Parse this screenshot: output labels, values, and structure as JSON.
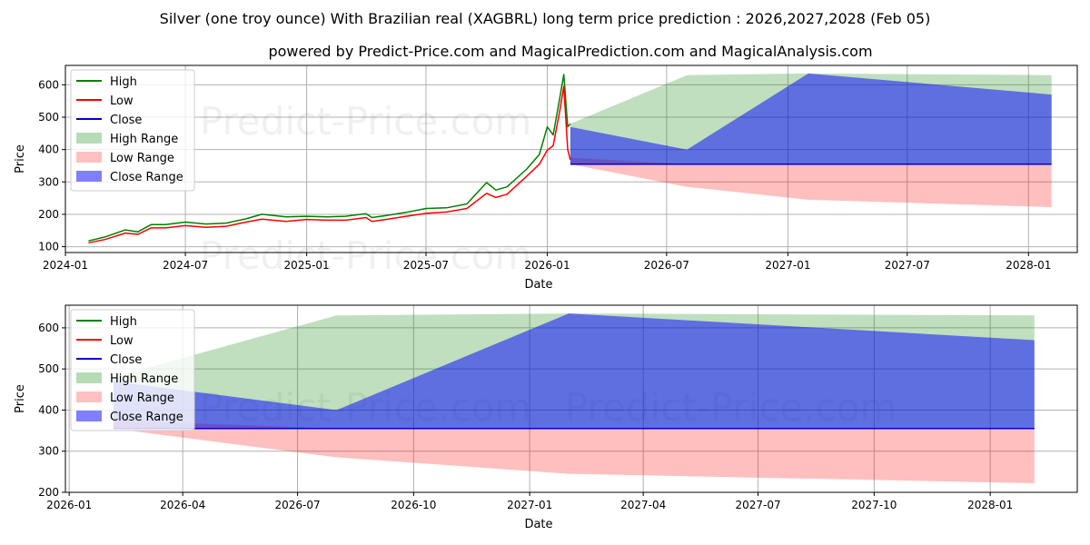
{
  "chart_data": [
    {
      "type": "line",
      "title": "Silver (one troy ounce) With Brazilian real (XAGBRL) long term price prediction : 2026,2027,2028 (Feb 05)",
      "subtitle": "powered by Predict-Price.com and MagicalPrediction.com and MagicalAnalysis.com",
      "xlabel": "Date",
      "ylabel": "Price",
      "watermark": [
        "Predict-Price.com",
        "Predict-Price.com"
      ],
      "xlim": [
        "2024-01-01",
        "2028-03-15"
      ],
      "ylim": [
        82,
        660
      ],
      "x_ticks": [
        "2024-01",
        "2024-07",
        "2025-01",
        "2025-07",
        "2026-01",
        "2026-07",
        "2027-01",
        "2027-07",
        "2028-01"
      ],
      "y_ticks": [
        100,
        200,
        300,
        400,
        500,
        600
      ],
      "grid": true,
      "legend_position": "upper-left",
      "legend": [
        "High",
        "Low",
        "Close",
        "High Range",
        "Low Range",
        "Close Range"
      ],
      "colors": {
        "high": "#008000",
        "low": "#ff0000",
        "close": "#0000cd",
        "high_range": "#b6dcb6",
        "low_range": "#ffc0c0",
        "close_range": "#8080ff"
      },
      "history": {
        "dates": [
          "2024-02-05",
          "2024-03-01",
          "2024-04-01",
          "2024-04-20",
          "2024-05-10",
          "2024-06-01",
          "2024-07-01",
          "2024-08-01",
          "2024-09-01",
          "2024-10-01",
          "2024-10-25",
          "2024-12-01",
          "2025-01-01",
          "2025-02-01",
          "2025-03-01",
          "2025-04-01",
          "2025-04-10",
          "2025-05-01",
          "2025-06-01",
          "2025-07-01",
          "2025-08-01",
          "2025-09-01",
          "2025-10-01",
          "2025-10-15",
          "2025-11-01",
          "2025-12-01",
          "2025-12-20",
          "2026-01-01",
          "2026-01-10",
          "2026-01-20",
          "2026-01-26",
          "2026-02-01",
          "2026-02-05"
        ],
        "low": [
          112,
          122,
          142,
          138,
          158,
          158,
          165,
          160,
          163,
          176,
          185,
          178,
          184,
          182,
          182,
          190,
          178,
          184,
          194,
          203,
          207,
          218,
          265,
          252,
          262,
          318,
          355,
          398,
          412,
          520,
          595,
          400,
          368
        ],
        "high": [
          118,
          130,
          152,
          146,
          168,
          168,
          176,
          170,
          173,
          186,
          200,
          192,
          194,
          192,
          194,
          202,
          190,
          196,
          206,
          218,
          220,
          232,
          298,
          275,
          285,
          340,
          385,
          470,
          445,
          560,
          632,
          470,
          480
        ]
      },
      "forecast_dates": [
        "2026-02-05",
        "2026-08-01",
        "2027-02-01",
        "2028-02-05"
      ],
      "high_range": {
        "upper": [
          480,
          630,
          635,
          630
        ],
        "lower": [
          355,
          355,
          355,
          355
        ]
      },
      "low_range": {
        "upper": [
          375,
          355,
          355,
          355
        ],
        "lower": [
          355,
          285,
          245,
          222
        ]
      },
      "close_range": {
        "dates": [
          "2026-02-05",
          "2026-08-01",
          "2027-02-01",
          "2028-02-05"
        ],
        "upper": [
          470,
          400,
          635,
          570
        ],
        "lower": [
          355,
          355,
          355,
          355
        ]
      },
      "close": {
        "dates": [
          "2026-02-05",
          "2028-02-05"
        ],
        "values": [
          355,
          355
        ]
      }
    },
    {
      "type": "line",
      "xlabel": "Date",
      "ylabel": "Price",
      "watermark": [
        "Predict-Price.com",
        "Predict-Price.com"
      ],
      "xlim": [
        "2025-12-29",
        "2028-03-10"
      ],
      "ylim": [
        200,
        655
      ],
      "x_ticks": [
        "2026-01",
        "2026-04",
        "2026-07",
        "2026-10",
        "2027-01",
        "2027-04",
        "2027-07",
        "2027-10",
        "2028-01"
      ],
      "y_ticks": [
        200,
        300,
        400,
        500,
        600
      ],
      "grid": true,
      "legend_position": "upper-left",
      "legend": [
        "High",
        "Low",
        "Close",
        "High Range",
        "Low Range",
        "Close Range"
      ],
      "colors": {
        "high": "#008000",
        "low": "#ff0000",
        "close": "#0000cd",
        "high_range": "#b6dcb6",
        "low_range": "#ffc0c0",
        "close_range": "#8080ff"
      },
      "forecast_dates": [
        "2026-02-05",
        "2026-08-01",
        "2027-02-01",
        "2028-02-05"
      ],
      "high_range": {
        "upper": [
          480,
          630,
          635,
          630
        ],
        "lower": [
          355,
          355,
          355,
          355
        ]
      },
      "low_range": {
        "upper": [
          375,
          355,
          355,
          355
        ],
        "lower": [
          355,
          285,
          245,
          222
        ]
      },
      "close_range": {
        "dates": [
          "2026-02-05",
          "2026-08-01",
          "2027-02-01",
          "2028-02-05"
        ],
        "upper": [
          470,
          400,
          635,
          570
        ],
        "lower": [
          355,
          355,
          355,
          355
        ]
      },
      "close": {
        "dates": [
          "2026-02-05",
          "2028-02-05"
        ],
        "values": [
          355,
          355
        ]
      }
    }
  ]
}
